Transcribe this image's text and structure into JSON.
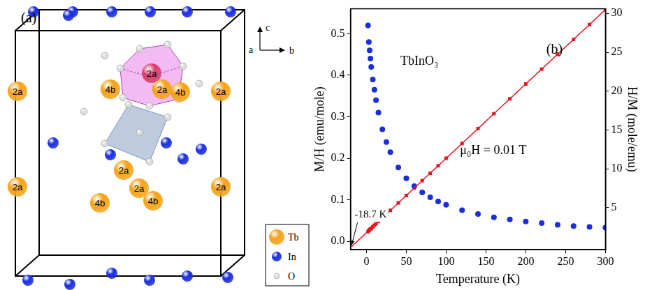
{
  "diagram": {
    "panel_label": "(a)",
    "axes": {
      "vertical": "c",
      "depth": "a",
      "horizontal": "b"
    },
    "sites": [
      "2a",
      "4b",
      "4b",
      "2a",
      "2a",
      "2a",
      "2a",
      "4b",
      "2a",
      "4b",
      "2a",
      "2a"
    ],
    "legend": [
      {
        "name": "Tb",
        "color": "#f5a31a"
      },
      {
        "name": "In",
        "color": "#1a2ee0"
      },
      {
        "name": "O",
        "color": "#dcdcdc"
      }
    ]
  },
  "chart_data": {
    "type": "scatter",
    "panel_label": "(b)",
    "x_label": "Temperature (K)",
    "y_label": "M/H (emu/mole)",
    "y2_label": "H/M (mole/emu)",
    "annotations": [
      {
        "text": "TbInO₃"
      },
      {
        "text": "μ₀H = 0.01 T"
      },
      {
        "text": "-18.7 K"
      }
    ],
    "xlim": [
      -20,
      300
    ],
    "xticks": [
      0,
      50,
      100,
      150,
      200,
      250,
      300
    ],
    "ylim": [
      -0.02,
      0.56
    ],
    "yticks": [
      {
        "value": 0,
        "label": "0.0"
      },
      0.1,
      0.2,
      0.3,
      0.4,
      0.5
    ],
    "y2lim": [
      -0.4,
      30.6
    ],
    "y2ticks": [
      5,
      10,
      15,
      20,
      25,
      30
    ],
    "grid": false,
    "series": [
      {
        "type": "scatter",
        "color": "#1a2ee0",
        "marker": "circle",
        "x": [
          2,
          3,
          4,
          5,
          6,
          8,
          10,
          12,
          15,
          20,
          25,
          30,
          40,
          50,
          60,
          70,
          80,
          90,
          100,
          120,
          140,
          160,
          180,
          200,
          220,
          240,
          260,
          280,
          300
        ],
        "values": [
          0.52,
          0.48,
          0.46,
          0.44,
          0.42,
          0.39,
          0.365,
          0.34,
          0.31,
          0.27,
          0.239,
          0.215,
          0.178,
          0.152,
          0.133,
          0.118,
          0.106,
          0.096,
          0.088,
          0.075,
          0.066,
          0.058,
          0.053,
          0.048,
          0.044,
          0.04,
          0.037,
          0.035,
          0.033
        ]
      },
      {
        "type": "scatter",
        "axis": "y2",
        "color": "#e8141b",
        "marker": "square",
        "x": [
          2,
          3,
          4,
          5,
          6,
          8,
          10,
          12,
          15,
          20,
          25,
          30,
          40,
          50,
          60,
          70,
          80,
          90,
          100,
          120,
          140,
          160,
          180,
          200,
          220,
          240,
          260,
          280,
          300
        ],
        "values": [
          1.92,
          2.08,
          2.17,
          2.27,
          2.36,
          2.56,
          2.75,
          2.94,
          3.22,
          3.7,
          4.18,
          4.66,
          5.62,
          6.57,
          7.53,
          8.49,
          9.44,
          10.4,
          11.36,
          13.27,
          15.19,
          17.1,
          19.01,
          20.93,
          22.84,
          24.76,
          26.67,
          28.58,
          30.5
        ]
      },
      {
        "type": "line",
        "axis": "y2",
        "color": "#e8141b",
        "line_style": "solid",
        "x": [
          -18.7,
          300
        ],
        "values": [
          0,
          30.5
        ]
      }
    ]
  }
}
